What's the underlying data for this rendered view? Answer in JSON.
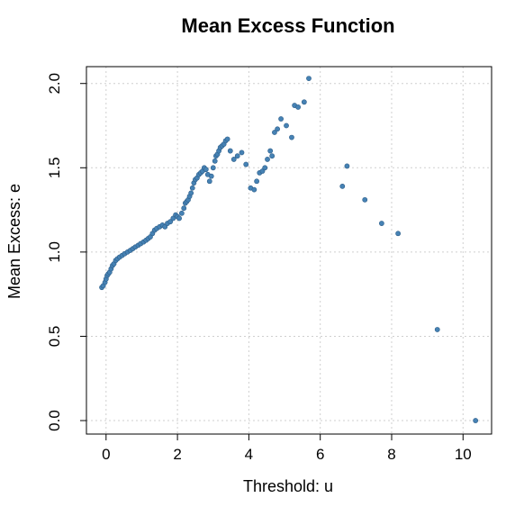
{
  "chart_data": {
    "type": "scatter",
    "title": "Mean Excess Function",
    "xlabel": "Threshold: u",
    "ylabel": "Mean Excess: e",
    "xlim": [
      -0.55,
      10.8
    ],
    "ylim": [
      -0.08,
      2.1
    ],
    "xticks": [
      "0",
      "2",
      "4",
      "6",
      "8",
      "10"
    ],
    "yticks": [
      "0.0",
      "0.5",
      "1.0",
      "1.5",
      "2.0"
    ],
    "grid": true,
    "point_color": "#4682B4",
    "x": [
      -0.12,
      -0.08,
      -0.03,
      0.0,
      0.03,
      0.06,
      0.1,
      0.14,
      0.18,
      0.22,
      0.27,
      0.32,
      0.38,
      0.45,
      0.52,
      0.6,
      0.68,
      0.75,
      0.82,
      0.9,
      0.97,
      1.05,
      1.12,
      1.18,
      1.24,
      1.3,
      1.36,
      1.42,
      1.5,
      1.58,
      1.65,
      1.72,
      1.8,
      1.88,
      1.95,
      2.0,
      2.05,
      2.12,
      2.18,
      2.22,
      2.26,
      2.3,
      2.34,
      2.38,
      2.42,
      2.46,
      2.5,
      2.55,
      2.6,
      2.65,
      2.7,
      2.75,
      2.8,
      2.85,
      2.9,
      2.95,
      3.0,
      3.05,
      3.08,
      3.12,
      3.16,
      3.2,
      3.25,
      3.3,
      3.35,
      3.4,
      3.48,
      3.58,
      3.68,
      3.8,
      3.92,
      4.05,
      4.15,
      4.22,
      4.3,
      4.38,
      4.45,
      4.52,
      4.6,
      4.65,
      4.72,
      4.8,
      4.9,
      5.05,
      5.2,
      5.28,
      5.38,
      5.55,
      5.68,
      6.62,
      6.75,
      7.25,
      7.72,
      8.18,
      9.28,
      10.35
    ],
    "y": [
      0.79,
      0.8,
      0.82,
      0.84,
      0.86,
      0.87,
      0.88,
      0.9,
      0.92,
      0.93,
      0.95,
      0.96,
      0.97,
      0.98,
      0.99,
      1.0,
      1.01,
      1.02,
      1.03,
      1.04,
      1.05,
      1.06,
      1.07,
      1.08,
      1.09,
      1.11,
      1.13,
      1.14,
      1.15,
      1.16,
      1.15,
      1.17,
      1.18,
      1.2,
      1.22,
      1.21,
      1.2,
      1.23,
      1.26,
      1.29,
      1.3,
      1.31,
      1.33,
      1.35,
      1.38,
      1.41,
      1.43,
      1.44,
      1.46,
      1.47,
      1.48,
      1.5,
      1.49,
      1.46,
      1.42,
      1.45,
      1.5,
      1.54,
      1.57,
      1.58,
      1.6,
      1.62,
      1.63,
      1.64,
      1.66,
      1.67,
      1.6,
      1.55,
      1.57,
      1.59,
      1.52,
      1.38,
      1.37,
      1.42,
      1.47,
      1.48,
      1.5,
      1.55,
      1.6,
      1.57,
      1.71,
      1.73,
      1.79,
      1.75,
      1.68,
      1.87,
      1.86,
      1.89,
      2.03,
      1.39,
      1.51,
      1.31,
      1.17,
      1.11,
      0.54,
      0.0
    ]
  }
}
